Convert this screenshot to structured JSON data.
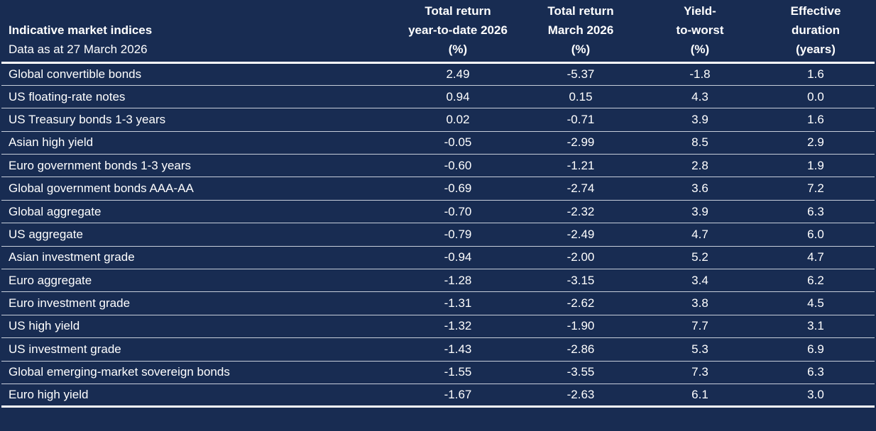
{
  "colors": {
    "background": "#182C52",
    "text": "#FFFFFF",
    "divider_thin": "#C7CFDB",
    "divider_strong": "#FFFFFF"
  },
  "chart_data": {
    "type": "table",
    "header": {
      "title": "Indicative market indices",
      "subtitle": "Data as at 27 March 2026",
      "columns": [
        {
          "line1": "Total return",
          "line2": "year-to-date 2026",
          "line3": "(%)"
        },
        {
          "line1": "Total return",
          "line2": "March 2026",
          "line3": "(%)"
        },
        {
          "line1": "Yield-",
          "line2": "to-worst",
          "line3": "(%)"
        },
        {
          "line1": "Effective",
          "line2": "duration",
          "line3": "(years)"
        }
      ]
    },
    "rows": [
      {
        "label": "Global convertible bonds",
        "ytd": "2.49",
        "march": "-5.37",
        "ytw": "-1.8",
        "duration": "1.6"
      },
      {
        "label": "US floating-rate notes",
        "ytd": "0.94",
        "march": "0.15",
        "ytw": "4.3",
        "duration": "0.0"
      },
      {
        "label": "US Treasury bonds 1-3 years",
        "ytd": "0.02",
        "march": "-0.71",
        "ytw": "3.9",
        "duration": "1.6"
      },
      {
        "label": "Asian high yield",
        "ytd": "-0.05",
        "march": "-2.99",
        "ytw": "8.5",
        "duration": "2.9"
      },
      {
        "label": "Euro government bonds 1-3 years",
        "ytd": "-0.60",
        "march": "-1.21",
        "ytw": "2.8",
        "duration": "1.9"
      },
      {
        "label": "Global government bonds AAA-AA",
        "ytd": "-0.69",
        "march": "-2.74",
        "ytw": "3.6",
        "duration": "7.2"
      },
      {
        "label": "Global aggregate",
        "ytd": "-0.70",
        "march": "-2.32",
        "ytw": "3.9",
        "duration": "6.3"
      },
      {
        "label": "US aggregate",
        "ytd": "-0.79",
        "march": "-2.49",
        "ytw": "4.7",
        "duration": "6.0"
      },
      {
        "label": "Asian investment grade",
        "ytd": "-0.94",
        "march": "-2.00",
        "ytw": "5.2",
        "duration": "4.7"
      },
      {
        "label": "Euro aggregate",
        "ytd": "-1.28",
        "march": "-3.15",
        "ytw": "3.4",
        "duration": "6.2"
      },
      {
        "label": "Euro investment grade",
        "ytd": "-1.31",
        "march": "-2.62",
        "ytw": "3.8",
        "duration": "4.5"
      },
      {
        "label": "US high yield",
        "ytd": "-1.32",
        "march": "-1.90",
        "ytw": "7.7",
        "duration": "3.1"
      },
      {
        "label": "US investment grade",
        "ytd": "-1.43",
        "march": "-2.86",
        "ytw": "5.3",
        "duration": "6.9"
      },
      {
        "label": "Global emerging-market sovereign bonds",
        "ytd": "-1.55",
        "march": "-3.55",
        "ytw": "7.3",
        "duration": "6.3"
      },
      {
        "label": "Euro high yield",
        "ytd": "-1.67",
        "march": "-2.63",
        "ytw": "6.1",
        "duration": "3.0"
      }
    ]
  }
}
